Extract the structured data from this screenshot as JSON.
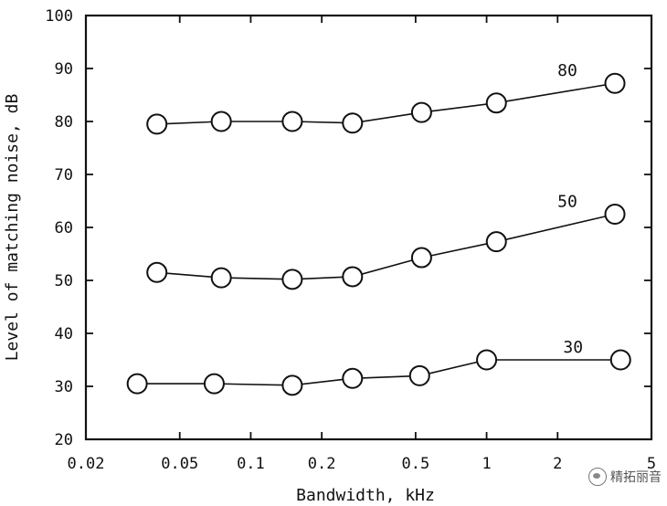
{
  "chart_data": {
    "type": "line",
    "title": "",
    "xlabel": "Bandwidth, kHz",
    "ylabel": "Level of matching noise, dB",
    "xscale": "log",
    "xlim": [
      0.02,
      5
    ],
    "ylim": [
      20,
      100
    ],
    "x_ticks": [
      0.02,
      0.05,
      0.1,
      0.2,
      0.5,
      1,
      2,
      5
    ],
    "x_tick_labels": [
      "0.02",
      "0.05",
      "0.1",
      "0.2",
      "0.5",
      "1",
      "2",
      "5"
    ],
    "y_ticks": [
      20,
      30,
      40,
      50,
      60,
      70,
      80,
      90,
      100
    ],
    "y_tick_labels": [
      "20",
      "30",
      "40",
      "50",
      "60",
      "70",
      "80",
      "90",
      "100"
    ],
    "grid": false,
    "marker": "open-circle",
    "series": [
      {
        "name": "80",
        "x": [
          0.04,
          0.075,
          0.15,
          0.27,
          0.53,
          1.1,
          3.5
        ],
        "y": [
          79.5,
          80,
          80,
          79.7,
          81.7,
          83.5,
          87.2
        ]
      },
      {
        "name": "50",
        "x": [
          0.04,
          0.075,
          0.15,
          0.27,
          0.53,
          1.1,
          3.5
        ],
        "y": [
          51.5,
          50.5,
          50.2,
          50.7,
          54.3,
          57.3,
          62.5
        ]
      },
      {
        "name": "30",
        "x": [
          0.033,
          0.07,
          0.15,
          0.27,
          0.52,
          1.0,
          3.7
        ],
        "y": [
          30.5,
          30.5,
          30.2,
          31.5,
          32,
          35,
          35
        ]
      }
    ]
  },
  "watermark": {
    "text": "精拓丽音",
    "icon": "wechat-icon"
  }
}
